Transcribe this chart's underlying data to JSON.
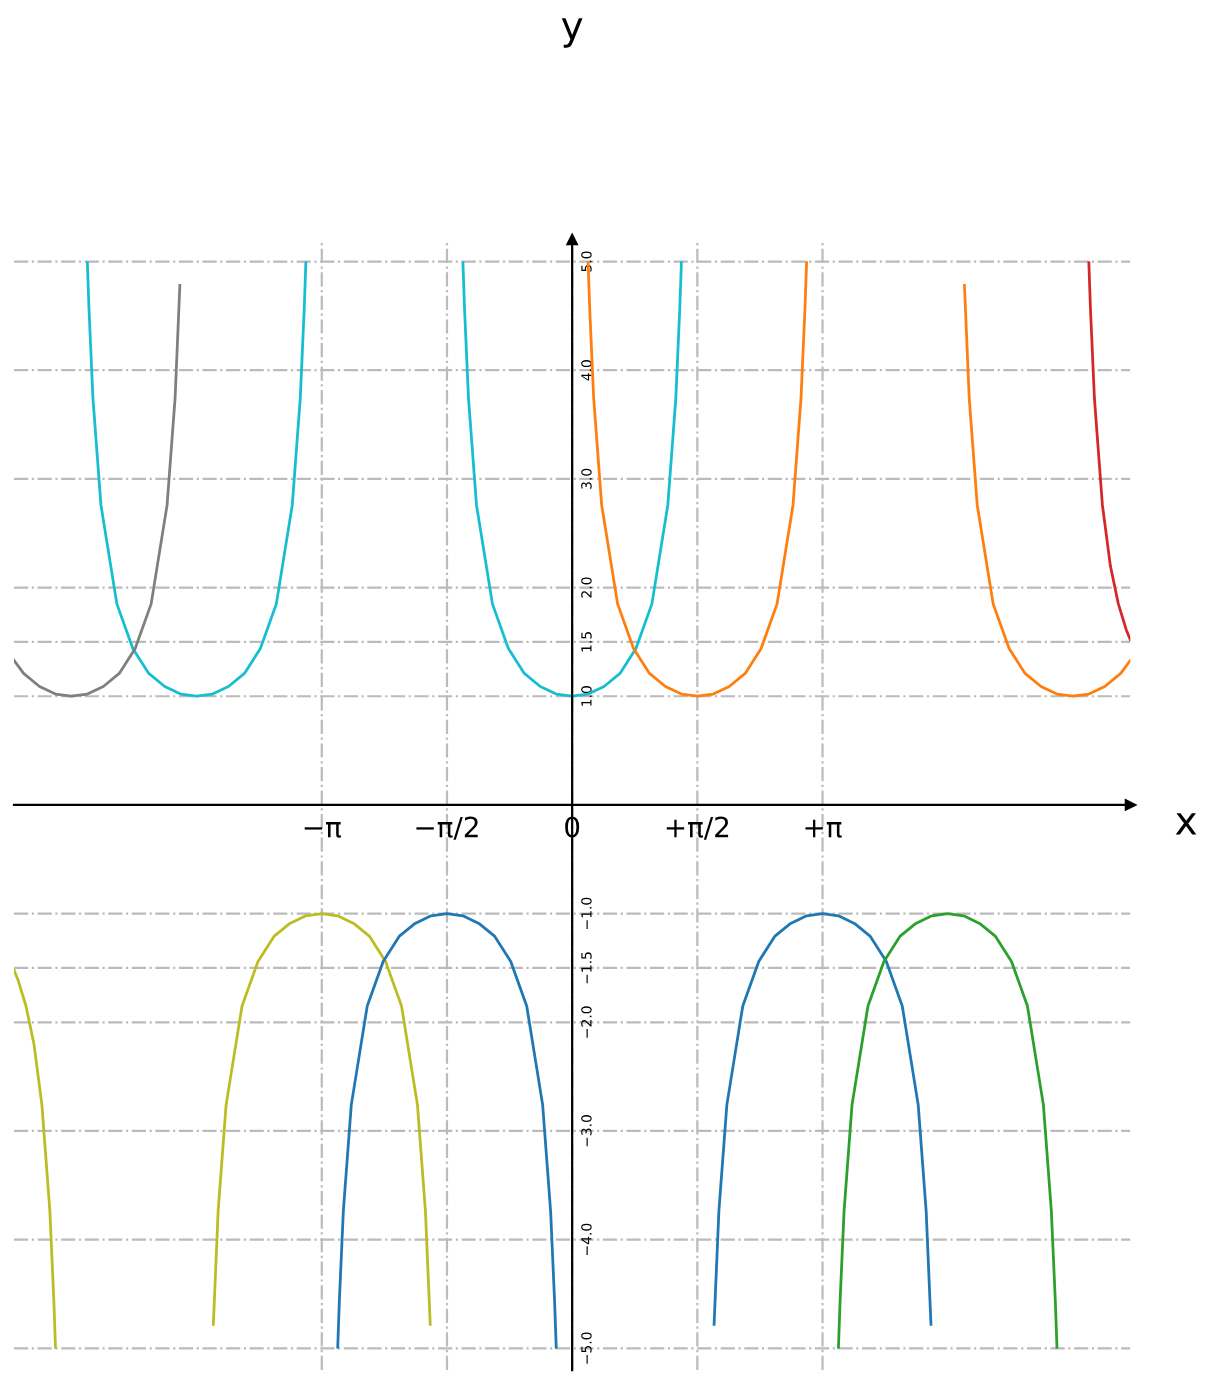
{
  "chart_data": {
    "type": "line",
    "xlabel": "x",
    "ylabel": "y",
    "xlim": [
      -7,
      7
    ],
    "ylim": [
      -5.2,
      5.2
    ],
    "xticks": [
      {
        "value": -3.14,
        "label": "−π"
      },
      {
        "value": -1.57,
        "label": "−π/2"
      },
      0,
      {
        "value": 1.57,
        "label": "+π/2"
      },
      {
        "value": 3.14,
        "label": "+π"
      }
    ],
    "yticks": [
      {
        "value": -5,
        "label": "−5.0"
      },
      {
        "value": -4,
        "label": "−4.0"
      },
      {
        "value": -3,
        "label": "−3.0"
      },
      {
        "value": -2,
        "label": "−2.0"
      },
      {
        "value": -1.5,
        "label": "−1.5"
      },
      {
        "value": -1,
        "label": "−1.0"
      },
      {
        "value": 1,
        "label": "1.0"
      },
      {
        "value": 1.5,
        "label": "1.5"
      },
      {
        "value": 2,
        "label": "2.0"
      },
      {
        "value": 3,
        "label": "3.0"
      },
      {
        "value": 4,
        "label": "4.0"
      },
      {
        "value": 5,
        "label": "5.0"
      }
    ],
    "grid": true,
    "line_style": "solid",
    "marker": "none",
    "series": [
      {
        "color": "#17becf",
        "x": [
          -6.08,
          -6.06,
          -6.01,
          -5.91,
          -5.71,
          -5.51,
          -5.31,
          -5.11,
          -4.91,
          -4.71,
          -4.51,
          -4.31,
          -4.11,
          -3.91,
          -3.71,
          -3.51,
          -3.41,
          -3.36,
          -3.34
        ],
        "values": [
          4.99,
          4.57,
          3.74,
          2.76,
          1.85,
          1.44,
          1.21,
          1.09,
          1.02,
          1,
          1.02,
          1.09,
          1.21,
          1.44,
          1.85,
          2.76,
          3.74,
          4.57,
          4.99
        ]
      },
      {
        "color": "#7f7f7f",
        "x": [
          -7.0,
          -6.88,
          -6.68,
          -6.48,
          -6.28,
          -6.08,
          -5.88,
          -5.68,
          -5.48,
          -5.28,
          -5.08,
          -4.98,
          -4.92
        ],
        "values": [
          1.33,
          1.21,
          1.09,
          1.02,
          1,
          1.02,
          1.09,
          1.21,
          1.44,
          1.85,
          2.76,
          3.74,
          4.78
        ]
      },
      {
        "color": "#17becf",
        "x": [
          -1.37,
          -1.35,
          -1.3,
          -1.2,
          -1.0,
          -0.8,
          -0.6,
          -0.4,
          -0.2,
          0,
          0.2,
          0.4,
          0.6,
          0.8,
          1.0,
          1.2,
          1.3,
          1.35,
          1.37
        ],
        "values": [
          4.99,
          4.57,
          3.74,
          2.76,
          1.85,
          1.44,
          1.21,
          1.09,
          1.02,
          1,
          1.02,
          1.09,
          1.21,
          1.44,
          1.85,
          2.76,
          3.74,
          4.57,
          4.99
        ]
      },
      {
        "color": "#ff7f0e",
        "x": [
          0.2,
          0.22,
          0.27,
          0.37,
          0.57,
          0.77,
          0.97,
          1.17,
          1.37,
          1.57,
          1.77,
          1.97,
          2.17,
          2.37,
          2.57,
          2.77,
          2.87,
          2.92,
          2.94
        ],
        "values": [
          4.99,
          4.57,
          3.74,
          2.76,
          1.85,
          1.44,
          1.21,
          1.09,
          1.02,
          1,
          1.02,
          1.09,
          1.21,
          1.44,
          1.85,
          2.76,
          3.74,
          4.57,
          4.99
        ]
      },
      {
        "color": "#ff7f0e",
        "x": [
          4.92,
          4.98,
          5.08,
          5.28,
          5.48,
          5.68,
          5.88,
          6.08,
          6.28,
          6.48,
          6.68,
          6.88,
          7.0
        ],
        "values": [
          4.78,
          3.74,
          2.76,
          1.85,
          1.44,
          1.21,
          1.09,
          1.02,
          1,
          1.02,
          1.09,
          1.21,
          1.33
        ]
      },
      {
        "color": "#d62728",
        "x": [
          6.48,
          6.5,
          6.55,
          6.65,
          6.75,
          6.85,
          6.95,
          7.0
        ],
        "values": [
          4.99,
          4.57,
          3.74,
          2.76,
          2.2,
          1.85,
          1.61,
          1.52
        ]
      },
      {
        "color": "#bcbd22",
        "x": [
          -7.0,
          -6.95,
          -6.85,
          -6.75,
          -6.65,
          -6.55,
          -6.5,
          -6.48
        ],
        "values": [
          -1.52,
          -1.61,
          -1.85,
          -2.2,
          -2.76,
          -3.74,
          -4.57,
          -4.99
        ]
      },
      {
        "color": "#bcbd22",
        "x": [
          -4.5,
          -4.44,
          -4.34,
          -4.14,
          -3.94,
          -3.74,
          -3.54,
          -3.34,
          -3.14,
          -2.94,
          -2.74,
          -2.54,
          -2.34,
          -2.14,
          -1.94,
          -1.84,
          -1.78
        ],
        "values": [
          -4.78,
          -3.74,
          -2.76,
          -1.85,
          -1.44,
          -1.21,
          -1.09,
          -1.02,
          -1,
          -1.02,
          -1.09,
          -1.21,
          -1.44,
          -1.85,
          -2.76,
          -3.74,
          -4.78
        ]
      },
      {
        "color": "#1f77b4",
        "x": [
          -2.94,
          -2.92,
          -2.87,
          -2.77,
          -2.57,
          -2.37,
          -2.17,
          -1.97,
          -1.77,
          -1.57,
          -1.37,
          -1.17,
          -0.97,
          -0.77,
          -0.57,
          -0.37,
          -0.27,
          -0.22,
          -0.2
        ],
        "values": [
          -4.99,
          -4.57,
          -3.74,
          -2.76,
          -1.85,
          -1.44,
          -1.21,
          -1.09,
          -1.02,
          -1,
          -1.02,
          -1.09,
          -1.21,
          -1.44,
          -1.85,
          -2.76,
          -3.74,
          -4.57,
          -4.99
        ]
      },
      {
        "color": "#1f77b4",
        "x": [
          1.78,
          1.84,
          1.94,
          2.14,
          2.34,
          2.54,
          2.74,
          2.94,
          3.14,
          3.34,
          3.54,
          3.74,
          3.94,
          4.14,
          4.34,
          4.44,
          4.5
        ],
        "values": [
          -4.78,
          -3.74,
          -2.76,
          -1.85,
          -1.44,
          -1.21,
          -1.09,
          -1.02,
          -1,
          -1.02,
          -1.09,
          -1.21,
          -1.44,
          -1.85,
          -2.76,
          -3.74,
          -4.78
        ]
      },
      {
        "color": "#2ca02c",
        "x": [
          3.34,
          3.36,
          3.41,
          3.51,
          3.71,
          3.91,
          4.11,
          4.31,
          4.51,
          4.71,
          4.91,
          5.11,
          5.31,
          5.51,
          5.71,
          5.91,
          6.01,
          6.06,
          6.08
        ],
        "values": [
          -4.99,
          -4.57,
          -3.74,
          -2.76,
          -1.85,
          -1.44,
          -1.21,
          -1.09,
          -1.02,
          -1,
          -1.02,
          -1.09,
          -1.21,
          -1.44,
          -1.85,
          -2.76,
          -3.74,
          -4.57,
          -4.99
        ]
      }
    ]
  }
}
